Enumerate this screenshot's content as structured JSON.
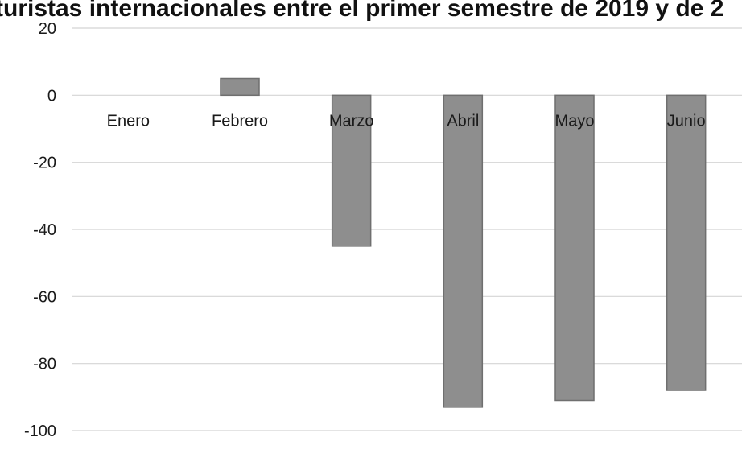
{
  "chart_data": {
    "type": "bar",
    "title": "turistas internacionales entre el primer semestre de 2019 y de 2",
    "categories": [
      "Enero",
      "Febrero",
      "Marzo",
      "Abril",
      "Mayo",
      "Junio"
    ],
    "values": [
      0,
      5,
      -45,
      -93,
      -91,
      -88
    ],
    "ylim": [
      -100,
      20
    ],
    "yticks": [
      20,
      0,
      -20,
      -40,
      -60,
      -80,
      -100
    ],
    "ytick_labels": [
      "20",
      "0",
      "-20",
      "-40",
      "-60",
      "-80",
      "-100"
    ],
    "grid": true,
    "legend": "none",
    "colors": {
      "bar": "#8e8e8e",
      "bar_edge": "#6f6f6f",
      "grid": "#d4d4d4",
      "axis_text": "#1a1a1a"
    }
  }
}
